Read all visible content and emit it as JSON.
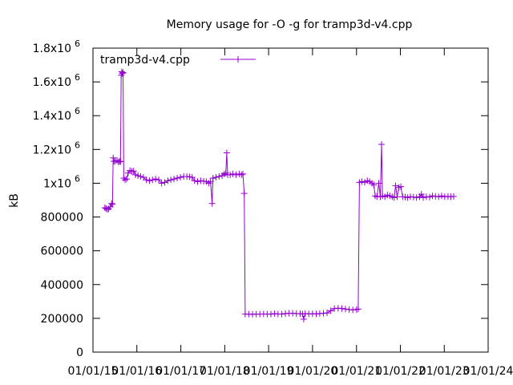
{
  "chart_data": {
    "type": "line",
    "title": "Memory usage for -O -g for tramp3d-v4.cpp",
    "xlabel": "",
    "ylabel": "kB",
    "xlim": [
      "2015-01-01",
      "2024-01-01"
    ],
    "ylim": [
      0,
      1800000
    ],
    "x_tick_labels": [
      "01/01/15",
      "01/01/16",
      "01/01/17",
      "01/01/18",
      "01/01/19",
      "01/01/20",
      "01/01/21",
      "01/01/22",
      "01/01/23",
      "01/01/24"
    ],
    "x_tick_dates": [
      "2015-01-01",
      "2016-01-01",
      "2017-01-01",
      "2018-01-01",
      "2019-01-01",
      "2020-01-01",
      "2021-01-01",
      "2022-01-01",
      "2023-01-01",
      "2024-01-01"
    ],
    "y_ticks": [
      {
        "value": 0,
        "base": "0",
        "exp": ""
      },
      {
        "value": 200000,
        "base": "200000",
        "exp": ""
      },
      {
        "value": 400000,
        "base": "400000",
        "exp": ""
      },
      {
        "value": 600000,
        "base": "600000",
        "exp": ""
      },
      {
        "value": 800000,
        "base": "800000",
        "exp": ""
      },
      {
        "value": 1000000,
        "base": "1x10",
        "exp": "6"
      },
      {
        "value": 1200000,
        "base": "1.2x10",
        "exp": "6"
      },
      {
        "value": 1400000,
        "base": "1.4x10",
        "exp": "6"
      },
      {
        "value": 1600000,
        "base": "1.6x10",
        "exp": "6"
      },
      {
        "value": 1800000,
        "base": "1.8x10",
        "exp": "6"
      }
    ],
    "grid": false,
    "legend": "top-left",
    "series": [
      {
        "name": "tramp3d-v4.cpp",
        "color": "#9400d3",
        "marker": "plus",
        "points": [
          [
            "2015-04-10",
            855000
          ],
          [
            "2015-04-20",
            850000
          ],
          [
            "2015-05-01",
            845000
          ],
          [
            "2015-05-12",
            848000
          ],
          [
            "2015-05-25",
            860000
          ],
          [
            "2015-06-05",
            880000
          ],
          [
            "2015-06-12",
            875000
          ],
          [
            "2015-06-18",
            1150000
          ],
          [
            "2015-06-24",
            1130000
          ],
          [
            "2015-07-05",
            1130000
          ],
          [
            "2015-07-20",
            1135000
          ],
          [
            "2015-08-01",
            1125000
          ],
          [
            "2015-08-10",
            1130000
          ],
          [
            "2015-08-18",
            1128000
          ],
          [
            "2015-08-24",
            1640000
          ],
          [
            "2015-08-28",
            1660000
          ],
          [
            "2015-09-02",
            1650000
          ],
          [
            "2015-09-08",
            1655000
          ],
          [
            "2015-09-14",
            1030000
          ],
          [
            "2015-09-25",
            1020000
          ],
          [
            "2015-10-08",
            1025000
          ],
          [
            "2015-10-20",
            1060000
          ],
          [
            "2015-11-05",
            1075000
          ],
          [
            "2015-11-20",
            1070000
          ],
          [
            "2015-12-05",
            1072000
          ],
          [
            "2015-12-20",
            1050000
          ],
          [
            "2016-01-10",
            1045000
          ],
          [
            "2016-02-01",
            1040000
          ],
          [
            "2016-02-25",
            1035000
          ],
          [
            "2016-03-20",
            1020000
          ],
          [
            "2016-04-15",
            1015000
          ],
          [
            "2016-05-10",
            1020000
          ],
          [
            "2016-06-05",
            1025000
          ],
          [
            "2016-07-01",
            1020000
          ],
          [
            "2016-07-25",
            1000000
          ],
          [
            "2016-08-20",
            1005000
          ],
          [
            "2016-09-15",
            1015000
          ],
          [
            "2016-10-10",
            1020000
          ],
          [
            "2016-11-05",
            1025000
          ],
          [
            "2016-12-01",
            1030000
          ],
          [
            "2016-12-28",
            1035000
          ],
          [
            "2017-01-25",
            1040000
          ],
          [
            "2017-02-20",
            1040000
          ],
          [
            "2017-03-15",
            1038000
          ],
          [
            "2017-04-05",
            1035000
          ],
          [
            "2017-04-25",
            1015000
          ],
          [
            "2017-05-20",
            1010000
          ],
          [
            "2017-06-15",
            1015000
          ],
          [
            "2017-07-10",
            1012000
          ],
          [
            "2017-08-01",
            1010000
          ],
          [
            "2017-08-20",
            1000000
          ],
          [
            "2017-09-05",
            1010000
          ],
          [
            "2017-09-18",
            880000
          ],
          [
            "2017-09-25",
            1030000
          ],
          [
            "2017-10-20",
            1035000
          ],
          [
            "2017-11-15",
            1040000
          ],
          [
            "2017-12-10",
            1045000
          ],
          [
            "2017-12-28",
            1055000
          ],
          [
            "2018-01-10",
            1060000
          ],
          [
            "2018-01-18",
            1180000
          ],
          [
            "2018-01-25",
            1050000
          ],
          [
            "2018-02-15",
            1050000
          ],
          [
            "2018-03-10",
            1055000
          ],
          [
            "2018-04-05",
            1050000
          ],
          [
            "2018-05-01",
            1055000
          ],
          [
            "2018-05-20",
            1050000
          ],
          [
            "2018-06-01",
            1055000
          ],
          [
            "2018-06-12",
            940000
          ],
          [
            "2018-06-20",
            225000
          ],
          [
            "2018-07-20",
            225000
          ],
          [
            "2018-08-20",
            224000
          ],
          [
            "2018-09-20",
            225000
          ],
          [
            "2018-10-20",
            225000
          ],
          [
            "2018-11-20",
            226000
          ],
          [
            "2018-12-20",
            225000
          ],
          [
            "2019-01-20",
            225000
          ],
          [
            "2019-02-20",
            228000
          ],
          [
            "2019-03-20",
            226000
          ],
          [
            "2019-04-20",
            225000
          ],
          [
            "2019-05-20",
            228000
          ],
          [
            "2019-06-20",
            230000
          ],
          [
            "2019-07-20",
            230000
          ],
          [
            "2019-08-20",
            228000
          ],
          [
            "2019-09-20",
            227000
          ],
          [
            "2019-10-10",
            226000
          ],
          [
            "2019-10-20",
            195000
          ],
          [
            "2019-11-01",
            228000
          ],
          [
            "2019-12-01",
            226000
          ],
          [
            "2020-01-01",
            227000
          ],
          [
            "2020-02-01",
            226000
          ],
          [
            "2020-03-01",
            228000
          ],
          [
            "2020-04-01",
            230000
          ],
          [
            "2020-05-01",
            232000
          ],
          [
            "2020-06-01",
            245000
          ],
          [
            "2020-07-01",
            258000
          ],
          [
            "2020-08-01",
            260000
          ],
          [
            "2020-09-01",
            258000
          ],
          [
            "2020-10-01",
            255000
          ],
          [
            "2020-11-01",
            252000
          ],
          [
            "2020-12-01",
            250000
          ],
          [
            "2021-01-01",
            252000
          ],
          [
            "2021-01-15",
            255000
          ],
          [
            "2021-01-25",
            1005000
          ],
          [
            "2021-02-15",
            1010000
          ],
          [
            "2021-03-10",
            1005000
          ],
          [
            "2021-04-01",
            1015000
          ],
          [
            "2021-04-20",
            1010000
          ],
          [
            "2021-05-10",
            1000000
          ],
          [
            "2021-05-25",
            990000
          ],
          [
            "2021-06-05",
            925000
          ],
          [
            "2021-06-20",
            920000
          ],
          [
            "2021-07-05",
            1000000
          ],
          [
            "2021-07-18",
            920000
          ],
          [
            "2021-07-28",
            1230000
          ],
          [
            "2021-08-05",
            925000
          ],
          [
            "2021-08-25",
            920000
          ],
          [
            "2021-09-15",
            930000
          ],
          [
            "2021-10-05",
            925000
          ],
          [
            "2021-10-25",
            920000
          ],
          [
            "2021-11-10",
            915000
          ],
          [
            "2021-11-22",
            985000
          ],
          [
            "2021-12-05",
            920000
          ],
          [
            "2021-12-20",
            975000
          ],
          [
            "2022-01-05",
            980000
          ],
          [
            "2022-01-20",
            920000
          ],
          [
            "2022-02-10",
            918000
          ],
          [
            "2022-03-01",
            915000
          ],
          [
            "2022-03-25",
            920000
          ],
          [
            "2022-04-20",
            918000
          ],
          [
            "2022-05-15",
            915000
          ],
          [
            "2022-06-10",
            920000
          ],
          [
            "2022-06-25",
            935000
          ],
          [
            "2022-07-10",
            915000
          ],
          [
            "2022-08-05",
            920000
          ],
          [
            "2022-09-01",
            918000
          ],
          [
            "2022-09-25",
            925000
          ],
          [
            "2022-10-20",
            922000
          ],
          [
            "2022-11-15",
            920000
          ],
          [
            "2022-12-10",
            925000
          ],
          [
            "2023-01-05",
            920000
          ],
          [
            "2023-02-01",
            922000
          ],
          [
            "2023-02-25",
            920000
          ],
          [
            "2023-03-20",
            922000
          ]
        ]
      }
    ]
  }
}
